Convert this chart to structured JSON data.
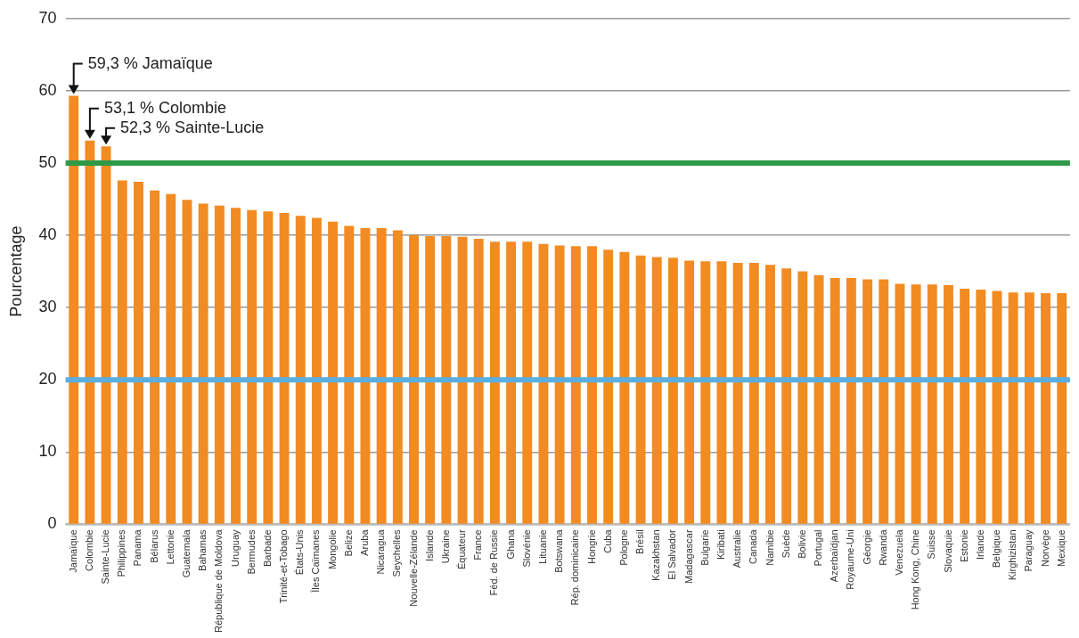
{
  "chart_data": {
    "type": "bar",
    "ylabel": "Pourcentage",
    "categories": [
      "Jamaïque",
      "Colombie",
      "Sainte-Lucie",
      "Philippines",
      "Panama",
      "Bélarus",
      "Lettonie",
      "Guatemala",
      "Bahamas",
      "République de Moldova",
      "Uruguay",
      "Bermudes",
      "Barbade",
      "Trinité-et-Tobago",
      "États-Unis",
      "Îles Caïmanes",
      "Mongolie",
      "Belize",
      "Aruba",
      "Nicaragua",
      "Seychelles",
      "Nouvelle-Zélande",
      "Islande",
      "Ukraine",
      "Équateur",
      "France",
      "Féd. de Russie",
      "Ghana",
      "Slovénie",
      "Lituanie",
      "Botswana",
      "Rép. dominicaine",
      "Hongrie",
      "Cuba",
      "Pologne",
      "Brésil",
      "Kazakhstan",
      "El Salvador",
      "Madagascar",
      "Bulgarie",
      "Kiribati",
      "Australie",
      "Canada",
      "Namibie",
      "Suède",
      "Bolivie",
      "Portugal",
      "Azerbaïdjan",
      "Royaume-Uni",
      "Géorgie",
      "Rwanda",
      "Venezuela",
      "Hong Kong, Chine",
      "Suisse",
      "Slovaquie",
      "Estonie",
      "Irlande",
      "Belgique",
      "Kirghizistan",
      "Paraguay",
      "Norvège",
      "Mexique"
    ],
    "values": [
      59.3,
      53.1,
      52.3,
      47.6,
      47.4,
      46.2,
      45.7,
      44.9,
      44.4,
      44.1,
      43.8,
      43.5,
      43.3,
      43.1,
      42.7,
      42.4,
      41.9,
      41.3,
      41.0,
      41.0,
      40.7,
      40.0,
      39.9,
      39.9,
      39.8,
      39.5,
      39.1,
      39.1,
      39.1,
      38.8,
      38.6,
      38.5,
      38.5,
      38.0,
      37.7,
      37.2,
      37.0,
      36.9,
      36.5,
      36.4,
      36.4,
      36.2,
      36.2,
      35.9,
      35.4,
      35.0,
      34.5,
      34.1,
      34.1,
      33.9,
      33.9,
      33.3,
      33.2,
      33.2,
      33.1,
      32.6,
      32.5,
      32.3,
      32.1,
      32.1,
      32.0,
      32.0
    ],
    "color": "#f18b22",
    "ylim": [
      0,
      70
    ],
    "yticks": [
      0,
      10,
      20,
      30,
      40,
      50,
      60,
      70
    ],
    "grid": "y",
    "legend": false,
    "ref_lines": [
      {
        "axis": "y",
        "value": 50,
        "label": null,
        "color": "#2e9a48"
      },
      {
        "axis": "y",
        "value": 20,
        "label": null,
        "color": "#5aaee0"
      }
    ],
    "annotations": [
      {
        "text": "59,3 % Jamaïque",
        "x": "Jamaïque",
        "y": 59.3
      },
      {
        "text": "53,1 % Colombie",
        "x": "Colombie",
        "y": 53.1
      },
      {
        "text": "52,3 % Sainte-Lucie",
        "x": "Sainte-Lucie",
        "y": 52.3
      }
    ]
  }
}
